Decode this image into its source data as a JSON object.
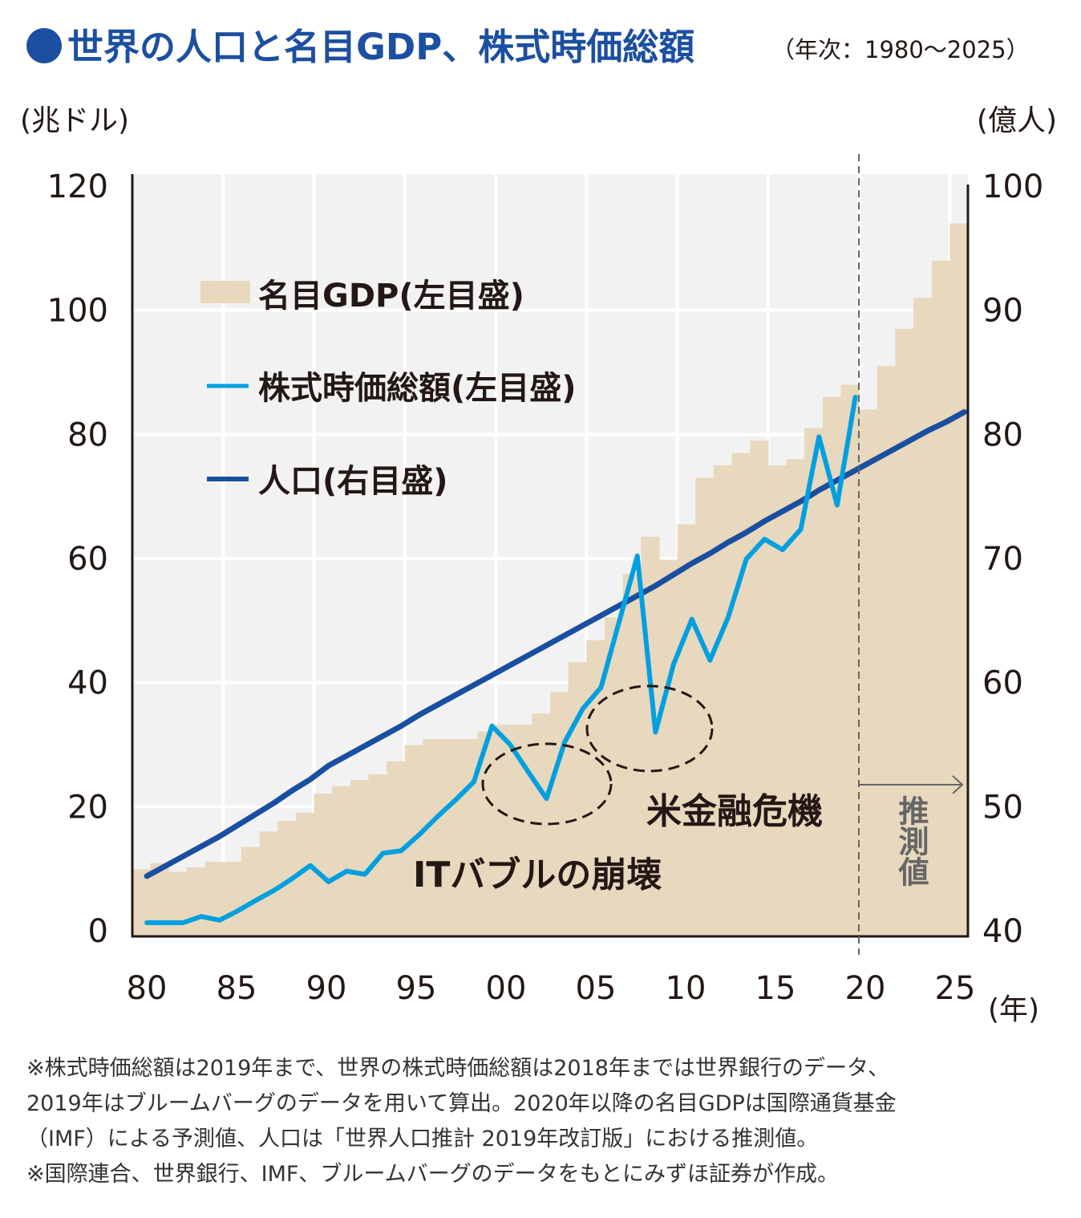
{
  "colors": {
    "title": "#1c4fa0",
    "plot_bg": "#f2f2f2",
    "gdp": "#e8d8be",
    "stock": "#00a0e0",
    "population": "#1a4fa0"
  },
  "chart_data": {
    "type": "bar+line",
    "title": "世界の人口と名目GDP、株式時価総額",
    "subtitle": "（年次：1980～2025）",
    "left_unit": "(兆ドル)",
    "right_unit": "(億人)",
    "x_unit": "(年)",
    "ylim_left": [
      0,
      120
    ],
    "ylim_right": [
      40,
      100
    ],
    "left_ticks": [
      "0",
      "20",
      "40",
      "60",
      "80",
      "100",
      "120"
    ],
    "right_ticks": [
      "40",
      "50",
      "60",
      "70",
      "80",
      "90",
      "100"
    ],
    "x_ticks": [
      "80",
      "85",
      "90",
      "95",
      "00",
      "05",
      "10",
      "15",
      "20",
      "25"
    ],
    "grid": true,
    "years": [
      1980,
      1981,
      1982,
      1983,
      1984,
      1985,
      1986,
      1987,
      1988,
      1989,
      1990,
      1991,
      1992,
      1993,
      1994,
      1995,
      1996,
      1997,
      1998,
      1999,
      2000,
      2001,
      2002,
      2003,
      2004,
      2005,
      2006,
      2007,
      2008,
      2009,
      2010,
      2011,
      2012,
      2013,
      2014,
      2015,
      2016,
      2017,
      2018,
      2019,
      2020,
      2021,
      2022,
      2023,
      2024,
      2025
    ],
    "series": [
      {
        "name": "名目GDP(左目盛)",
        "type": "bar",
        "axis": "left",
        "values": [
          9.9,
          10.9,
          9.5,
          10.2,
          11.1,
          11.1,
          13.5,
          16.0,
          17.7,
          19.0,
          22.1,
          23.3,
          24.3,
          25.2,
          27.3,
          29.9,
          30.9,
          30.9,
          30.9,
          32.1,
          33.2,
          33.2,
          35.0,
          38.5,
          43.3,
          46.8,
          50.5,
          57.5,
          63.5,
          59.8,
          65.5,
          73.0,
          75.0,
          77.0,
          79.0,
          75.0,
          76.0,
          81.0,
          86.0,
          88.0,
          84.0,
          91.0,
          97.0,
          102.0,
          108.0,
          114.0
        ]
      },
      {
        "name": "株式時価総額(左目盛)",
        "type": "line",
        "axis": "left",
        "values": [
          1.3,
          1.3,
          1.3,
          2.3,
          1.7,
          3.2,
          4.9,
          6.5,
          8.4,
          10.5,
          7.9,
          9.6,
          9.1,
          12.5,
          12.9,
          15.5,
          18.4,
          21.1,
          24.0,
          33.0,
          30.0,
          25.6,
          21.3,
          30.4,
          35.8,
          39.2,
          49.8,
          60.4,
          32.0,
          43.0,
          50.2,
          43.6,
          50.5,
          59.9,
          63.1,
          61.4,
          64.7,
          79.6,
          68.6,
          86.0
        ]
      },
      {
        "name": "人口(右目盛)",
        "type": "line",
        "axis": "right",
        "values": [
          44.4,
          45.2,
          46.0,
          46.8,
          47.6,
          48.5,
          49.4,
          50.3,
          51.3,
          52.2,
          53.3,
          54.1,
          54.9,
          55.7,
          56.5,
          57.4,
          58.2,
          59.0,
          59.8,
          60.6,
          61.4,
          62.2,
          63.0,
          63.8,
          64.6,
          65.4,
          66.2,
          67.0,
          67.8,
          68.7,
          69.6,
          70.4,
          71.3,
          72.1,
          73.0,
          73.8,
          74.6,
          75.5,
          76.3,
          77.1,
          77.9,
          78.7,
          79.5,
          80.3,
          81.0,
          81.8
        ]
      }
    ],
    "legend": [
      {
        "label": "名目GDP(左目盛)"
      },
      {
        "label": "株式時価総額(左目盛)"
      },
      {
        "label": "人口(右目盛)"
      }
    ],
    "legend_placement": "top-left",
    "annotations": {
      "it_bubble": "ITバブルの崩壊",
      "financial_crisis": "米金融危機",
      "forecast": "推測値"
    }
  },
  "notes": [
    "※株式時価総額は2019年まで、世界の株式時価総額は2018年までは世界銀行のデータ、",
    "2019年はブルームバーグのデータを用いて算出。2020年以降の名目GDPは国際通貨基金",
    "（IMF）による予測値、人口は「世界人口推計 2019年改訂版」における推測値。",
    "※国際連合、世界銀行、IMF、ブルームバーグのデータをもとにみずほ証券が作成。"
  ]
}
